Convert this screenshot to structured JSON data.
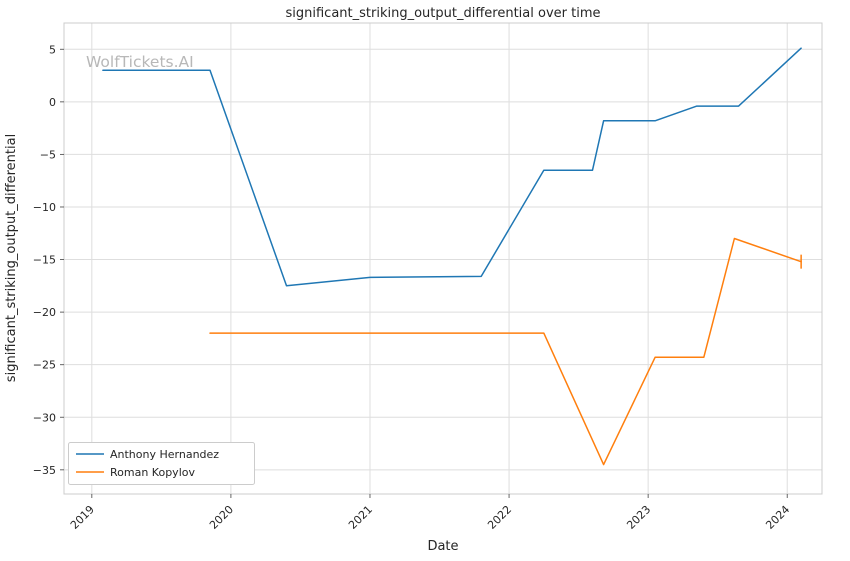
{
  "chart_data": {
    "type": "line",
    "title": "significant_striking_output_differential over time",
    "xlabel": "Date",
    "ylabel": "significant_striking_output_differential",
    "watermark": "WolfTickets.AI",
    "xlim": [
      2018.8,
      2024.25
    ],
    "ylim": [
      -37.3,
      7.5
    ],
    "xticks": [
      2019,
      2020,
      2021,
      2022,
      2023,
      2024
    ],
    "yticks": [
      5,
      0,
      -5,
      -10,
      -15,
      -20,
      -25,
      -30,
      -35
    ],
    "grid": true,
    "legend": {
      "position": "lower-left",
      "entries": [
        "Anthony Hernandez",
        "Roman Kopylov"
      ]
    },
    "series": [
      {
        "name": "Anthony Hernandez",
        "color": "#1f77b4",
        "x": [
          2019.08,
          2019.85,
          2020.4,
          2021.0,
          2021.8,
          2022.25,
          2022.6,
          2022.68,
          2023.05,
          2023.35,
          2023.65,
          2024.1
        ],
        "y": [
          3.0,
          3.0,
          -17.5,
          -16.7,
          -16.6,
          -6.5,
          -6.5,
          -1.8,
          -1.8,
          -0.4,
          -0.4,
          5.1
        ]
      },
      {
        "name": "Roman Kopylov",
        "color": "#ff7f0e",
        "x": [
          2019.85,
          2022.25,
          2022.68,
          2023.05,
          2023.4,
          2023.62,
          2024.1
        ],
        "y": [
          -22.0,
          -22.0,
          -34.5,
          -24.3,
          -24.3,
          -13.0,
          -15.2
        ],
        "end_cap": true
      }
    ]
  },
  "colors": {
    "grid": "#dedede",
    "spine": "#cccccc",
    "text": "#262626",
    "watermark": "#b8b8b8"
  }
}
